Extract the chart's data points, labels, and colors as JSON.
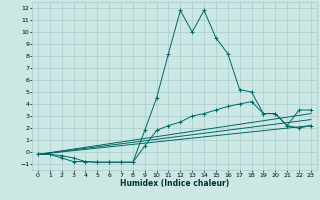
{
  "title": "",
  "xlabel": "Humidex (Indice chaleur)",
  "bg_color": "#cce8e4",
  "grid_color": "#aacccc",
  "line_color": "#006666",
  "xlim": [
    -0.5,
    23.5
  ],
  "ylim": [
    -1.5,
    12.5
  ],
  "xticks": [
    0,
    1,
    2,
    3,
    4,
    5,
    6,
    7,
    8,
    9,
    10,
    11,
    12,
    13,
    14,
    15,
    16,
    17,
    18,
    19,
    20,
    21,
    22,
    23
  ],
  "yticks": [
    -1,
    0,
    1,
    2,
    3,
    4,
    5,
    6,
    7,
    8,
    9,
    10,
    11,
    12
  ],
  "line1_x": [
    0,
    1,
    2,
    3,
    4,
    5,
    6,
    7,
    8,
    9,
    10,
    11,
    12,
    13,
    14,
    15,
    16,
    17,
    18,
    19,
    20,
    21,
    22,
    23
  ],
  "line1_y": [
    -0.2,
    -0.2,
    -0.5,
    -0.8,
    -0.8,
    -0.85,
    -0.85,
    -0.85,
    -0.85,
    1.8,
    4.5,
    8.2,
    11.8,
    10.0,
    11.8,
    9.5,
    8.2,
    5.2,
    5.0,
    3.2,
    3.2,
    2.2,
    2.0,
    2.2
  ],
  "line2_x": [
    0,
    1,
    2,
    3,
    4,
    5,
    6,
    7,
    8,
    9,
    10,
    11,
    12,
    13,
    14,
    15,
    16,
    17,
    18,
    19,
    20,
    21,
    22,
    23
  ],
  "line2_y": [
    -0.2,
    -0.2,
    -0.3,
    -0.5,
    -0.8,
    -0.85,
    -0.85,
    -0.85,
    -0.85,
    0.5,
    1.8,
    2.2,
    2.5,
    3.0,
    3.2,
    3.5,
    3.8,
    4.0,
    4.2,
    3.2,
    3.2,
    2.2,
    3.5,
    3.5
  ],
  "line3_x": [
    0,
    23
  ],
  "line3_y": [
    -0.2,
    3.2
  ],
  "line4_x": [
    0,
    23
  ],
  "line4_y": [
    -0.2,
    2.7
  ],
  "line5_x": [
    0,
    23
  ],
  "line5_y": [
    -0.2,
    2.2
  ]
}
